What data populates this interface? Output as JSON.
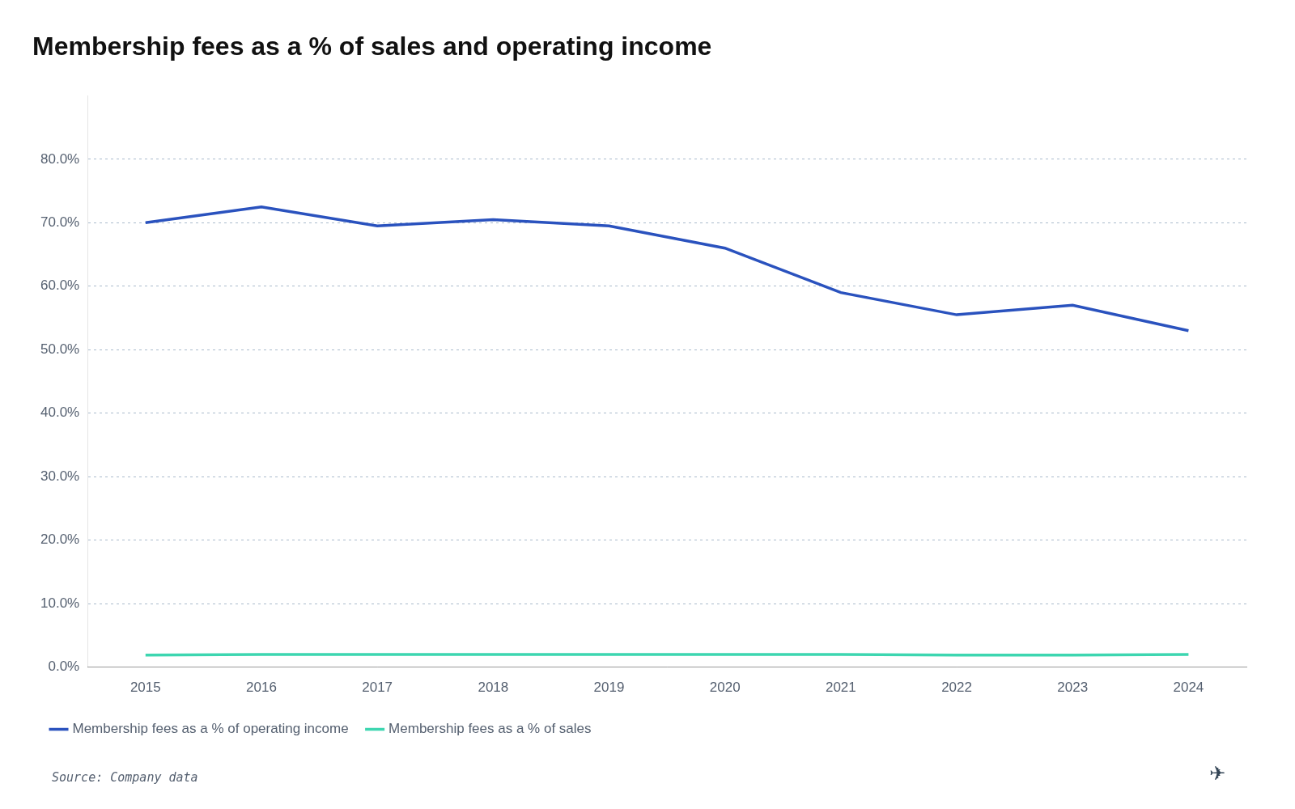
{
  "chart_data": {
    "type": "line",
    "title": "Membership fees as a % of sales and operating income",
    "x": [
      2015,
      2016,
      2017,
      2018,
      2019,
      2020,
      2021,
      2022,
      2023,
      2024
    ],
    "series": [
      {
        "name": "Membership fees as a % of operating income",
        "color": "#2A52BE",
        "values": [
          70.0,
          72.5,
          69.5,
          70.5,
          69.5,
          66.0,
          59.0,
          55.5,
          57.0,
          53.0
        ]
      },
      {
        "name": "Membership fees as a % of sales",
        "color": "#3DD6B0",
        "values": [
          1.9,
          2.0,
          2.0,
          2.0,
          2.0,
          2.0,
          2.0,
          1.9,
          1.9,
          2.0
        ]
      }
    ],
    "xlim": [
      2014.5,
      2024.5
    ],
    "xticks": [
      2015,
      2016,
      2017,
      2018,
      2019,
      2020,
      2021,
      2022,
      2023,
      2024
    ],
    "ylim": [
      0,
      90
    ],
    "yticks": [
      {
        "value": 0,
        "label": "0.0%"
      },
      {
        "value": 10,
        "label": "10.0%"
      },
      {
        "value": 20,
        "label": "20.0%"
      },
      {
        "value": 30,
        "label": "30.0%"
      },
      {
        "value": 40,
        "label": "40.0%"
      },
      {
        "value": 50,
        "label": "50.0%"
      },
      {
        "value": 60,
        "label": "60.0%"
      },
      {
        "value": 70,
        "label": "70.0%"
      },
      {
        "value": 80,
        "label": "80.0%"
      }
    ],
    "grid": true,
    "legend": "bottom",
    "annotations": [
      "Source: Company data",
      "✈"
    ]
  }
}
